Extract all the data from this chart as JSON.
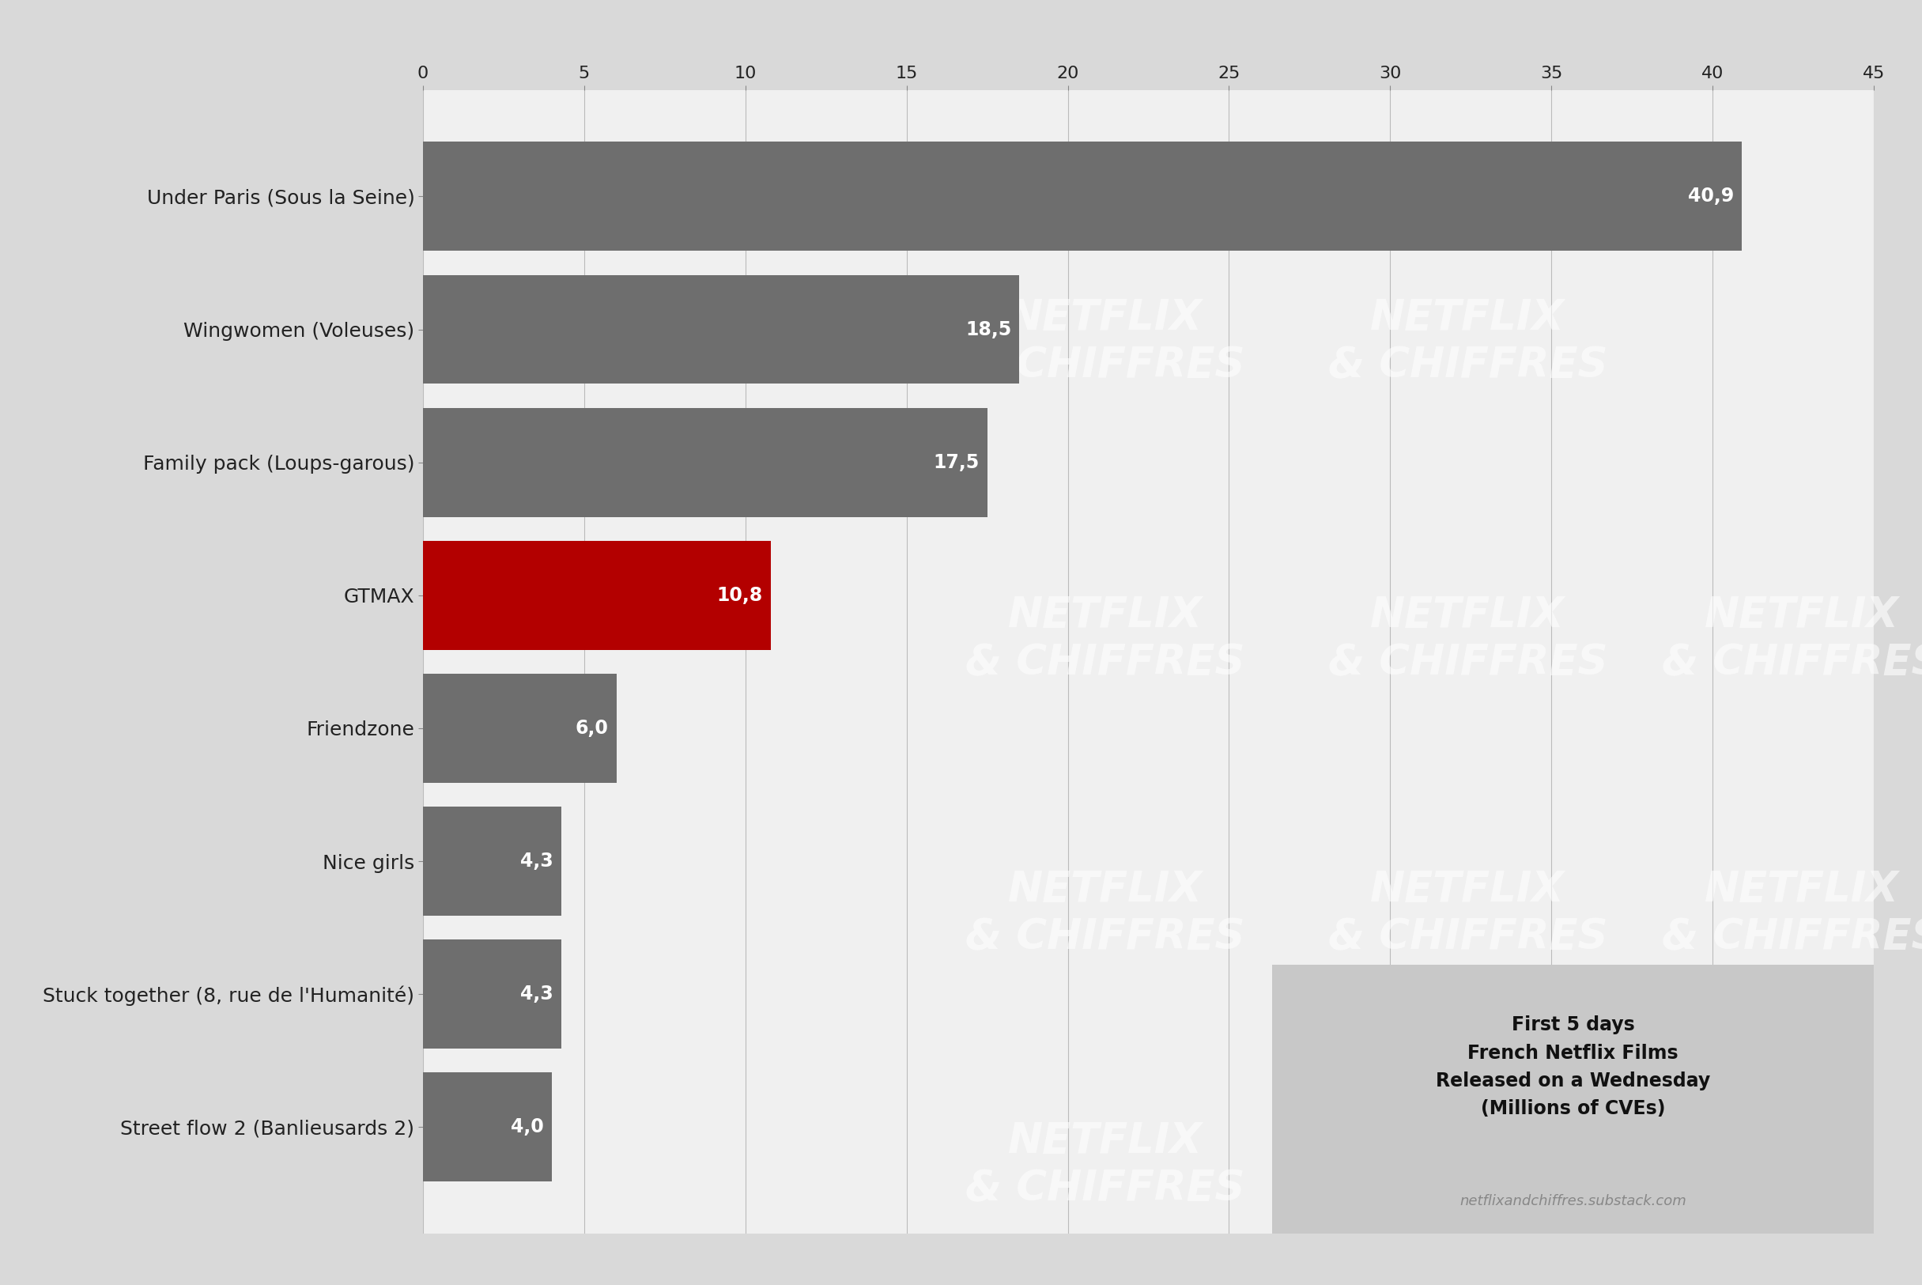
{
  "categories": [
    "Under Paris (Sous la Seine)",
    "Wingwomen (Voleuses)",
    "Family pack (Loups-garous)",
    "GTMAX",
    "Friendzone",
    "Nice girls",
    "Stuck together (8, rue de l'Humanité)",
    "Street flow 2 (Banlieusards 2)"
  ],
  "values": [
    40.9,
    18.5,
    17.5,
    10.8,
    6.0,
    4.3,
    4.3,
    4.0
  ],
  "labels": [
    "40,9",
    "18,5",
    "17,5",
    "10,8",
    "6,0",
    "4,3",
    "4,3",
    "4,0"
  ],
  "bar_colors": [
    "#6e6e6e",
    "#6e6e6e",
    "#6e6e6e",
    "#b30000",
    "#6e6e6e",
    "#6e6e6e",
    "#6e6e6e",
    "#6e6e6e"
  ],
  "background_color": "#d9d9d9",
  "plot_bg_color": "#f0f0f0",
  "bar_label_color": "#ffffff",
  "axis_label_color": "#222222",
  "xlim": [
    0,
    45
  ],
  "xticks": [
    0,
    5,
    10,
    15,
    20,
    25,
    30,
    35,
    40,
    45
  ],
  "annotation_box_color": "#c8c8c8",
  "annotation_text": "First 5 days\nFrench Netflix Films\nReleased on a Wednesday\n(Millions of CVEs)",
  "watermark_text": "NETFLIX\n& CHIFFRES",
  "url_text": "netflixandchiffres.substack.com",
  "label_fontsize": 18,
  "bar_value_fontsize": 17,
  "tick_fontsize": 16,
  "annotation_fontsize": 17,
  "url_fontsize": 13
}
